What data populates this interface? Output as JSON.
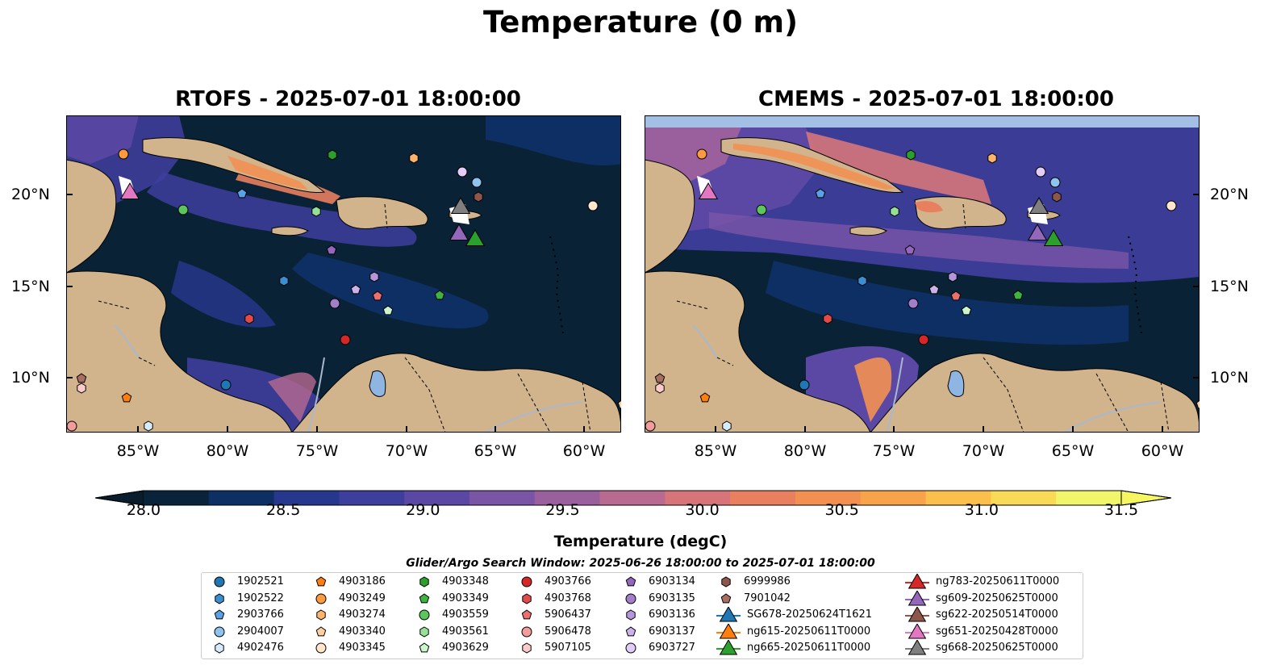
{
  "figure": {
    "suptitle": "Temperature (0 m)",
    "left_title": "RTOFS - 2025-07-01 18:00:00",
    "right_title": "CMEMS - 2025-07-01 18:00:00"
  },
  "axes": {
    "lon_ticks": [
      "85°W",
      "80°W",
      "75°W",
      "70°W",
      "65°W",
      "60°W"
    ],
    "lat_ticks": [
      "20°N",
      "15°N",
      "10°N"
    ]
  },
  "colorbar": {
    "label": "Temperature (degC)",
    "ticks": [
      "28.0",
      "28.5",
      "29.0",
      "29.5",
      "30.0",
      "30.5",
      "31.0",
      "31.5"
    ],
    "colors": [
      "#08233a",
      "#0e2f63",
      "#26388e",
      "#3e3e9d",
      "#5a48a4",
      "#7a55a6",
      "#9a609e",
      "#b86a91",
      "#d6747a",
      "#e8805f",
      "#f29052",
      "#f8a34a",
      "#fbbf4c",
      "#f8da57",
      "#f0f56a"
    ],
    "extend_min": "#0a1d2d",
    "extend_max": "#f6f562"
  },
  "legend": {
    "title": "Glider/Argo Search Window: 2025-06-26 18:00:00 to 2025-07-01 18:00:00",
    "columns": [
      [
        {
          "label": "1902521",
          "marker": "circle",
          "color": "#1f77b4"
        },
        {
          "label": "1902522",
          "marker": "hexagon",
          "color": "#3b8ed0"
        },
        {
          "label": "2903766",
          "marker": "pentagon",
          "color": "#5aa2e6"
        },
        {
          "label": "2904007",
          "marker": "circle",
          "color": "#8ec3f0"
        },
        {
          "label": "4902476",
          "marker": "hexagon",
          "color": "#d6ecfb"
        }
      ],
      [
        {
          "label": "4903186",
          "marker": "pentagon",
          "color": "#ff7f0e"
        },
        {
          "label": "4903249",
          "marker": "circle",
          "color": "#ff9a3d"
        },
        {
          "label": "4903274",
          "marker": "hexagon",
          "color": "#ffb46b"
        },
        {
          "label": "4903340",
          "marker": "pentagon",
          "color": "#ffcf9f"
        },
        {
          "label": "4903345",
          "marker": "circle",
          "color": "#ffe6cc"
        }
      ],
      [
        {
          "label": "4903348",
          "marker": "hexagon",
          "color": "#2ca02c"
        },
        {
          "label": "4903349",
          "marker": "pentagon",
          "color": "#3fb33f"
        },
        {
          "label": "4903559",
          "marker": "circle",
          "color": "#5cc65c"
        },
        {
          "label": "4903561",
          "marker": "hexagon",
          "color": "#96e096"
        },
        {
          "label": "4903629",
          "marker": "pentagon",
          "color": "#cdf5cd"
        }
      ],
      [
        {
          "label": "4903766",
          "marker": "circle",
          "color": "#d62728"
        },
        {
          "label": "4903768",
          "marker": "hexagon",
          "color": "#e24a4a"
        },
        {
          "label": "5906437",
          "marker": "pentagon",
          "color": "#ec6f70"
        },
        {
          "label": "5906478",
          "marker": "circle",
          "color": "#f39c9c"
        },
        {
          "label": "5907105",
          "marker": "hexagon",
          "color": "#fbcaca"
        }
      ],
      [
        {
          "label": "6903134",
          "marker": "pentagon",
          "color": "#9467bd"
        },
        {
          "label": "6903135",
          "marker": "circle",
          "color": "#a37fcb"
        },
        {
          "label": "6903136",
          "marker": "hexagon",
          "color": "#b597d9"
        },
        {
          "label": "6903137",
          "marker": "pentagon",
          "color": "#cbb2e8"
        },
        {
          "label": "6903727",
          "marker": "circle",
          "color": "#e2cdf6"
        }
      ],
      [
        {
          "label": "6999986",
          "marker": "hexagon",
          "color": "#8c564b"
        },
        {
          "label": "7901042",
          "marker": "pentagon",
          "color": "#a86e62"
        },
        {
          "label": "SG678-20250624T1621",
          "marker": "triangle",
          "color": "#1f77b4"
        },
        {
          "label": "ng615-20250611T0000",
          "marker": "triangle",
          "color": "#ff7f0e"
        },
        {
          "label": "ng665-20250611T0000",
          "marker": "triangle",
          "color": "#2ca02c"
        }
      ],
      [
        {
          "label": "ng783-20250611T0000",
          "marker": "triangle",
          "color": "#d62728"
        },
        {
          "label": "sg609-20250625T0000",
          "marker": "triangle",
          "color": "#9467bd"
        },
        {
          "label": "sg622-20250514T0000",
          "marker": "triangle",
          "color": "#8c564b"
        },
        {
          "label": "sg651-20250428T0000",
          "marker": "triangle",
          "color": "#e377c2"
        },
        {
          "label": "sg668-20250625T0000",
          "marker": "triangle",
          "color": "#7f7f7f"
        }
      ]
    ]
  },
  "colors": {
    "land": "#d2b48c",
    "river": "#a9b8cc",
    "lake": "#8fb5e2",
    "nodata_band": "#a4bfe5"
  }
}
